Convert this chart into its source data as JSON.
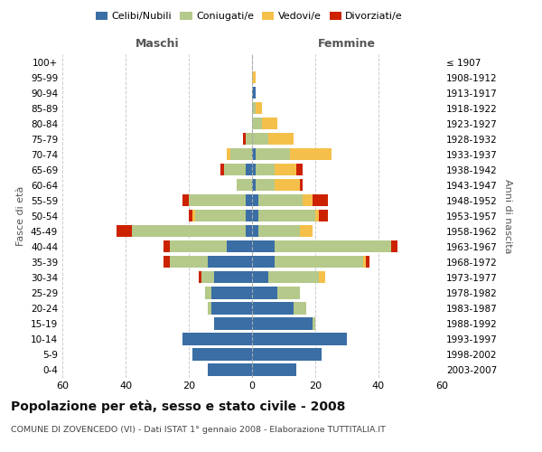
{
  "age_groups": [
    "0-4",
    "5-9",
    "10-14",
    "15-19",
    "20-24",
    "25-29",
    "30-34",
    "35-39",
    "40-44",
    "45-49",
    "50-54",
    "55-59",
    "60-64",
    "65-69",
    "70-74",
    "75-79",
    "80-84",
    "85-89",
    "90-94",
    "95-99",
    "100+"
  ],
  "birth_years": [
    "2003-2007",
    "1998-2002",
    "1993-1997",
    "1988-1992",
    "1983-1987",
    "1978-1982",
    "1973-1977",
    "1968-1972",
    "1963-1967",
    "1958-1962",
    "1953-1957",
    "1948-1952",
    "1943-1947",
    "1938-1942",
    "1933-1937",
    "1928-1932",
    "1923-1927",
    "1918-1922",
    "1913-1917",
    "1908-1912",
    "≤ 1907"
  ],
  "male": {
    "celibi": [
      14,
      19,
      22,
      12,
      13,
      13,
      12,
      14,
      8,
      2,
      2,
      2,
      0,
      2,
      0,
      0,
      0,
      0,
      0,
      0,
      0
    ],
    "coniugati": [
      0,
      0,
      0,
      0,
      1,
      2,
      4,
      12,
      18,
      36,
      16,
      18,
      5,
      7,
      7,
      2,
      0,
      0,
      0,
      0,
      0
    ],
    "vedovi": [
      0,
      0,
      0,
      0,
      0,
      0,
      0,
      0,
      0,
      0,
      1,
      0,
      0,
      0,
      1,
      0,
      0,
      0,
      0,
      0,
      0
    ],
    "divorziati": [
      0,
      0,
      0,
      0,
      0,
      0,
      1,
      2,
      2,
      5,
      1,
      2,
      0,
      1,
      0,
      1,
      0,
      0,
      0,
      0,
      0
    ]
  },
  "female": {
    "nubili": [
      14,
      22,
      30,
      19,
      13,
      8,
      5,
      7,
      7,
      2,
      2,
      2,
      1,
      1,
      1,
      0,
      0,
      0,
      1,
      0,
      0
    ],
    "coniugate": [
      0,
      0,
      0,
      1,
      4,
      7,
      16,
      28,
      37,
      13,
      18,
      14,
      6,
      6,
      11,
      5,
      3,
      1,
      0,
      0,
      0
    ],
    "vedove": [
      0,
      0,
      0,
      0,
      0,
      0,
      2,
      1,
      0,
      4,
      1,
      3,
      8,
      7,
      13,
      8,
      5,
      2,
      0,
      1,
      0
    ],
    "divorziate": [
      0,
      0,
      0,
      0,
      0,
      0,
      0,
      1,
      2,
      0,
      3,
      5,
      1,
      2,
      0,
      0,
      0,
      0,
      0,
      0,
      0
    ]
  },
  "colors": {
    "celibi_nubili": "#3a6ea5",
    "coniugati": "#b5c98a",
    "vedovi": "#f5c04a",
    "divorziati": "#cc2200"
  },
  "xlim": 60,
  "title": "Popolazione per età, sesso e stato civile - 2008",
  "subtitle": "COMUNE DI ZOVENCEDO (VI) - Dati ISTAT 1° gennaio 2008 - Elaborazione TUTTITALIA.IT",
  "ylabel_left": "Fasce di età",
  "ylabel_right": "Anni di nascita",
  "xlabel_left": "Maschi",
  "xlabel_right": "Femmine",
  "bg_color": "#ffffff",
  "grid_color": "#cccccc"
}
